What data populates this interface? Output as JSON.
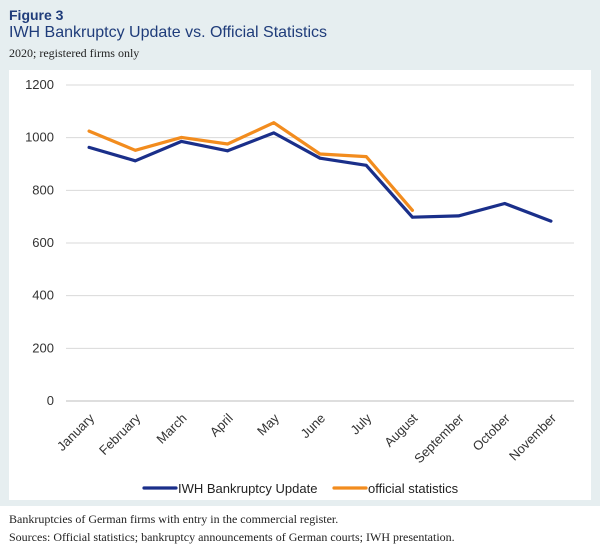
{
  "figure": {
    "label": "Figure 3",
    "title": "IWH Bankruptcy Update vs. Official Statistics",
    "subtitle": "2020; registered firms only"
  },
  "notes": {
    "line1": "Bankruptcies of German firms with entry in the commercial register.",
    "line2": "Sources: Official statistics; bankruptcy announcements of German courts; IWH presentation."
  },
  "chart_data": {
    "type": "line",
    "categories": [
      "January",
      "February",
      "March",
      "April",
      "May",
      "June",
      "July",
      "August",
      "September",
      "October",
      "November"
    ],
    "series": [
      {
        "name": "IWH Bankruptcy Update",
        "color": "#1a2f8a",
        "values": [
          963,
          912,
          986,
          950,
          1018,
          922,
          895,
          698,
          703,
          750,
          683
        ]
      },
      {
        "name": "official statistics",
        "color": "#f28c1e",
        "values": [
          1025,
          952,
          1001,
          976,
          1057,
          938,
          928,
          724,
          null,
          null,
          null
        ]
      }
    ],
    "yticks": [
      0,
      200,
      400,
      600,
      800,
      1000,
      1200
    ],
    "ylim": [
      0,
      1200
    ],
    "grid": true,
    "legend_position": "bottom"
  }
}
